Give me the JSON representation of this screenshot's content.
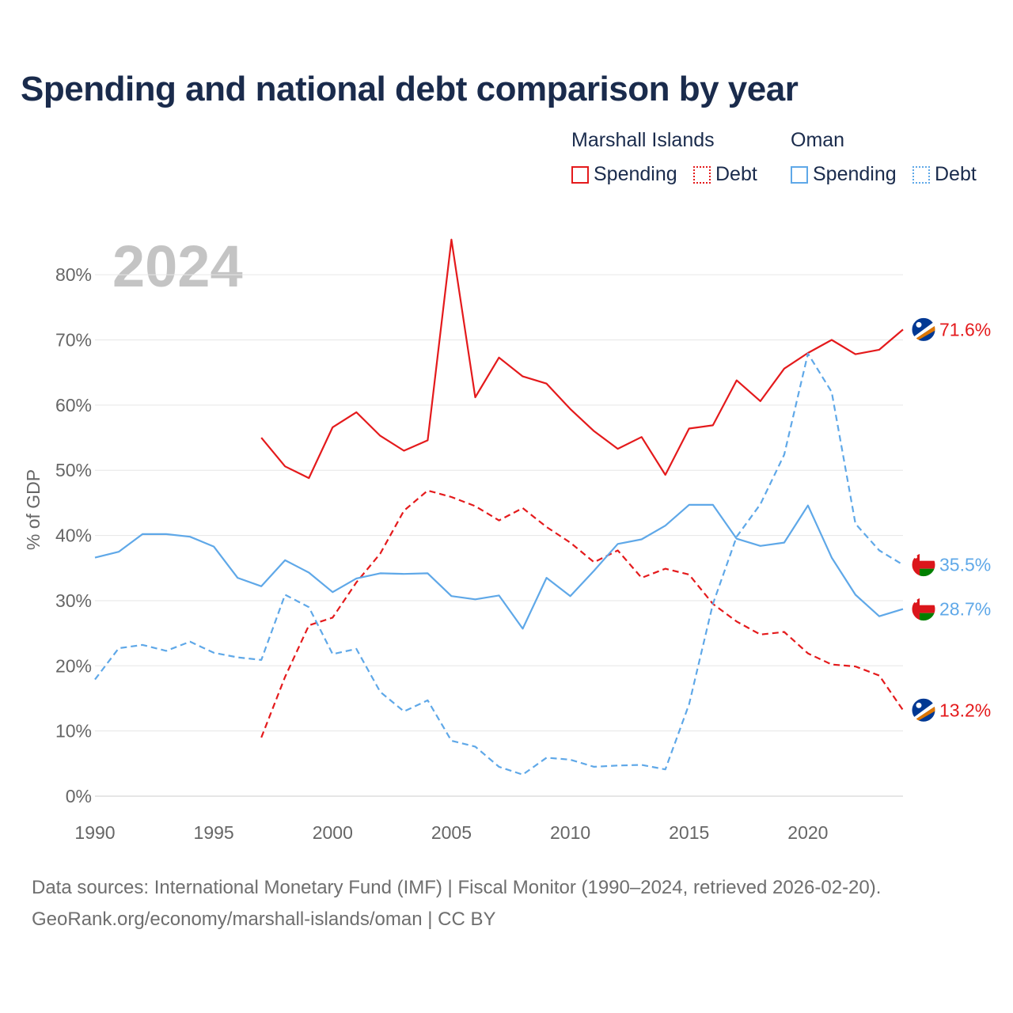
{
  "title": "Spending and national debt comparison by year",
  "legend": {
    "groups": [
      {
        "label": "Marshall Islands",
        "color": "#e41a1c",
        "items": [
          {
            "label": "Spending",
            "style": "solid"
          },
          {
            "label": "Debt",
            "style": "dotted"
          }
        ]
      },
      {
        "label": "Oman",
        "color": "#5fa8e8",
        "items": [
          {
            "label": "Spending",
            "style": "solid"
          },
          {
            "label": "Debt",
            "style": "dotted"
          }
        ]
      }
    ]
  },
  "year_watermark": "2024",
  "source": {
    "line1": "Data sources: International Monetary Fund (IMF) | Fiscal Monitor (1990–2024, retrieved 2026-02-20).",
    "line2": "GeoRank.org/economy/marshall-islands/oman | CC BY"
  },
  "chart_data": {
    "type": "line",
    "title": "Spending and national debt comparison by year",
    "xlabel": "",
    "ylabel": "% of GDP",
    "xlim": [
      1990,
      2024
    ],
    "ylim": [
      0,
      85
    ],
    "x_ticks": [
      1990,
      1995,
      2000,
      2005,
      2010,
      2015,
      2020
    ],
    "y_ticks": [
      0,
      10,
      20,
      30,
      40,
      50,
      60,
      70,
      80
    ],
    "y_tick_labels": [
      "0%",
      "10%",
      "20%",
      "30%",
      "40%",
      "50%",
      "60%",
      "70%",
      "80%"
    ],
    "grid": true,
    "legend_position": "top-right",
    "series": [
      {
        "name": "Marshall Islands Spending",
        "country": "Marshall Islands",
        "color": "#e41a1c",
        "dash": "solid",
        "end_label": "71.6%",
        "points": [
          [
            1997,
            55.0
          ],
          [
            1998,
            50.6
          ],
          [
            1999,
            48.8
          ],
          [
            2000,
            56.6
          ],
          [
            2001,
            58.9
          ],
          [
            2002,
            55.3
          ],
          [
            2003,
            53.0
          ],
          [
            2004,
            54.6
          ],
          [
            2005,
            85.4
          ],
          [
            2006,
            61.2
          ],
          [
            2007,
            67.3
          ],
          [
            2008,
            64.4
          ],
          [
            2009,
            63.3
          ],
          [
            2010,
            59.4
          ],
          [
            2011,
            56.0
          ],
          [
            2012,
            53.3
          ],
          [
            2013,
            55.1
          ],
          [
            2014,
            49.3
          ],
          [
            2015,
            56.4
          ],
          [
            2016,
            56.9
          ],
          [
            2017,
            63.8
          ],
          [
            2018,
            60.6
          ],
          [
            2019,
            65.6
          ],
          [
            2020,
            68.0
          ],
          [
            2021,
            70.0
          ],
          [
            2022,
            67.8
          ],
          [
            2023,
            68.5
          ],
          [
            2024,
            71.6
          ]
        ]
      },
      {
        "name": "Marshall Islands Debt",
        "country": "Marshall Islands",
        "color": "#e41a1c",
        "dash": "dashed",
        "end_label": "13.2%",
        "points": [
          [
            1997,
            9.0
          ],
          [
            1998,
            18.3
          ],
          [
            1999,
            26.2
          ],
          [
            2000,
            27.4
          ],
          [
            2001,
            32.8
          ],
          [
            2002,
            37.2
          ],
          [
            2003,
            43.8
          ],
          [
            2004,
            46.9
          ],
          [
            2005,
            45.9
          ],
          [
            2006,
            44.5
          ],
          [
            2007,
            42.3
          ],
          [
            2008,
            44.2
          ],
          [
            2009,
            41.3
          ],
          [
            2010,
            38.9
          ],
          [
            2011,
            35.9
          ],
          [
            2012,
            37.7
          ],
          [
            2013,
            33.5
          ],
          [
            2014,
            34.9
          ],
          [
            2015,
            34.0
          ],
          [
            2016,
            29.5
          ],
          [
            2017,
            26.8
          ],
          [
            2018,
            24.8
          ],
          [
            2019,
            25.2
          ],
          [
            2020,
            21.9
          ],
          [
            2021,
            20.2
          ],
          [
            2022,
            19.9
          ],
          [
            2023,
            18.5
          ],
          [
            2024,
            13.2
          ]
        ]
      },
      {
        "name": "Oman Spending",
        "country": "Oman",
        "color": "#5fa8e8",
        "dash": "solid",
        "end_label": "28.7%",
        "points": [
          [
            1990,
            36.6
          ],
          [
            1991,
            37.5
          ],
          [
            1992,
            40.2
          ],
          [
            1993,
            40.2
          ],
          [
            1994,
            39.8
          ],
          [
            1995,
            38.3
          ],
          [
            1996,
            33.5
          ],
          [
            1997,
            32.2
          ],
          [
            1998,
            36.2
          ],
          [
            1999,
            34.3
          ],
          [
            2000,
            31.3
          ],
          [
            2001,
            33.4
          ],
          [
            2002,
            34.2
          ],
          [
            2003,
            34.1
          ],
          [
            2004,
            34.2
          ],
          [
            2005,
            30.7
          ],
          [
            2006,
            30.2
          ],
          [
            2007,
            30.8
          ],
          [
            2008,
            25.7
          ],
          [
            2009,
            33.5
          ],
          [
            2010,
            30.7
          ],
          [
            2011,
            34.6
          ],
          [
            2012,
            38.7
          ],
          [
            2013,
            39.4
          ],
          [
            2014,
            41.5
          ],
          [
            2015,
            44.7
          ],
          [
            2016,
            44.7
          ],
          [
            2017,
            39.5
          ],
          [
            2018,
            38.4
          ],
          [
            2019,
            38.9
          ],
          [
            2020,
            44.6
          ],
          [
            2021,
            36.6
          ],
          [
            2022,
            30.9
          ],
          [
            2023,
            27.6
          ],
          [
            2024,
            28.7
          ]
        ]
      },
      {
        "name": "Oman Debt",
        "country": "Oman",
        "color": "#5fa8e8",
        "dash": "dashed",
        "end_label": "35.5%",
        "points": [
          [
            1990,
            17.9
          ],
          [
            1991,
            22.7
          ],
          [
            1992,
            23.2
          ],
          [
            1993,
            22.3
          ],
          [
            1994,
            23.7
          ],
          [
            1995,
            22.0
          ],
          [
            1996,
            21.3
          ],
          [
            1997,
            20.9
          ],
          [
            1998,
            30.9
          ],
          [
            1999,
            29.0
          ],
          [
            2000,
            21.8
          ],
          [
            2001,
            22.6
          ],
          [
            2002,
            16.0
          ],
          [
            2003,
            13.0
          ],
          [
            2004,
            14.7
          ],
          [
            2005,
            8.5
          ],
          [
            2006,
            7.6
          ],
          [
            2007,
            4.5
          ],
          [
            2008,
            3.3
          ],
          [
            2009,
            5.9
          ],
          [
            2010,
            5.6
          ],
          [
            2011,
            4.5
          ],
          [
            2012,
            4.7
          ],
          [
            2013,
            4.8
          ],
          [
            2014,
            4.1
          ],
          [
            2015,
            14.1
          ],
          [
            2016,
            29.5
          ],
          [
            2017,
            39.8
          ],
          [
            2018,
            44.8
          ],
          [
            2019,
            52.4
          ],
          [
            2020,
            67.9
          ],
          [
            2021,
            62.0
          ],
          [
            2022,
            41.8
          ],
          [
            2023,
            37.7
          ],
          [
            2024,
            35.5
          ]
        ]
      }
    ]
  }
}
